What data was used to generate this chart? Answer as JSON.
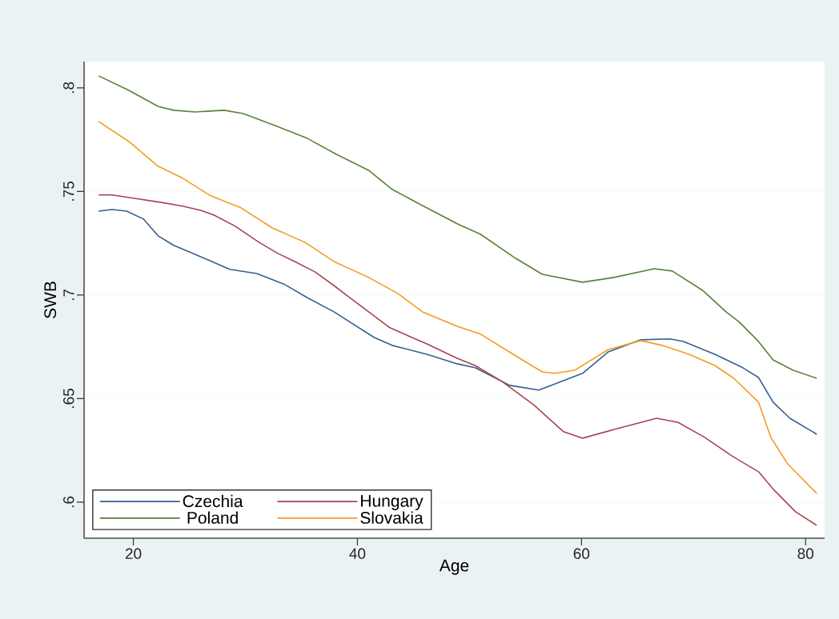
{
  "chart_data": {
    "type": "line",
    "xlabel": "Age",
    "ylabel": "SWB",
    "xlim": [
      15.6,
      81.7
    ],
    "ylim": [
      0.5826,
      0.8127
    ],
    "xticks": [
      20,
      40,
      60,
      80
    ],
    "yticks": [
      {
        "value": 0.6,
        "label": ".6"
      },
      {
        "value": 0.65,
        "label": ".65"
      },
      {
        "value": 0.7,
        "label": ".7"
      },
      {
        "value": 0.75,
        "label": ".75"
      },
      {
        "value": 0.8,
        "label": ".8"
      }
    ],
    "grid": "y",
    "legend": "bottom left",
    "marker": "none",
    "line_style": "solid",
    "series": [
      {
        "name": "Czechia",
        "color": "#33618f",
        "x": [
          16.9,
          18.1,
          19.4,
          20.9,
          22.2,
          23.6,
          25.8,
          28.6,
          31,
          33.4,
          35.5,
          37.9,
          41.5,
          43.1,
          46.2,
          48.9,
          50.5,
          53.6,
          56.2,
          60.1,
          62.4,
          65.3,
          67.9,
          69.1,
          71.9,
          74.4,
          75.8,
          77.1,
          78.6,
          81
        ],
        "values": [
          0.7405,
          0.7413,
          0.7405,
          0.7367,
          0.7286,
          0.724,
          0.719,
          0.7124,
          0.7104,
          0.7054,
          0.6988,
          0.6919,
          0.6795,
          0.6757,
          0.6714,
          0.6668,
          0.6649,
          0.6564,
          0.6541,
          0.6622,
          0.6726,
          0.6784,
          0.6788,
          0.6776,
          0.6714,
          0.6649,
          0.6602,
          0.6483,
          0.6405,
          0.6328
        ]
      },
      {
        "name": "Hungary",
        "color": "#a8434f",
        "x": [
          16.9,
          18.1,
          20.1,
          22.4,
          24.4,
          26,
          27.2,
          29.1,
          31.2,
          32.9,
          34.4,
          36.2,
          37.9,
          39.1,
          41,
          42.9,
          46.2,
          48.9,
          50.5,
          52.9,
          55.8,
          58.4,
          60.1,
          62.9,
          66.7,
          68.6,
          71,
          73.4,
          75.8,
          77.2,
          79.1,
          81
        ],
        "values": [
          0.7483,
          0.7483,
          0.7467,
          0.7448,
          0.7429,
          0.7409,
          0.7386,
          0.7332,
          0.7255,
          0.7201,
          0.7162,
          0.7112,
          0.7046,
          0.6996,
          0.6919,
          0.6842,
          0.6764,
          0.6695,
          0.666,
          0.6583,
          0.6467,
          0.634,
          0.6309,
          0.6351,
          0.6405,
          0.6386,
          0.6313,
          0.6224,
          0.6147,
          0.6058,
          0.5954,
          0.5888
        ]
      },
      {
        "name": "Poland",
        "color": "#5a8236",
        "x": [
          16.9,
          19.6,
          22.2,
          23.6,
          25.5,
          28.1,
          29.8,
          32.6,
          35.5,
          38.1,
          41,
          43.1,
          45.8,
          48.9,
          51,
          54.1,
          56.5,
          60.1,
          62.9,
          66.5,
          68.1,
          70.8,
          72.9,
          74.1,
          75.8,
          77.1,
          78.9,
          81
        ],
        "values": [
          0.8058,
          0.7988,
          0.7911,
          0.7892,
          0.7884,
          0.7892,
          0.7876,
          0.7819,
          0.7757,
          0.768,
          0.7602,
          0.751,
          0.7432,
          0.7344,
          0.7293,
          0.7178,
          0.71,
          0.7062,
          0.7085,
          0.7127,
          0.7116,
          0.7023,
          0.6919,
          0.6869,
          0.6776,
          0.6687,
          0.6637,
          0.6598
        ]
      },
      {
        "name": "Slovakia",
        "color": "#f39c1f",
        "x": [
          16.9,
          19.6,
          22.2,
          24.4,
          26.9,
          29.6,
          32.4,
          35.3,
          37.9,
          41,
          43.6,
          45.8,
          48.9,
          51,
          54.1,
          56.5,
          57.6,
          59.4,
          62.4,
          65.3,
          67.2,
          69.6,
          71.9,
          73.6,
          75.8,
          76.9,
          78.4,
          81
        ],
        "values": [
          0.7838,
          0.7741,
          0.7622,
          0.7564,
          0.7479,
          0.7421,
          0.7324,
          0.7255,
          0.7162,
          0.7085,
          0.7008,
          0.6919,
          0.6849,
          0.6811,
          0.6707,
          0.6629,
          0.6622,
          0.6637,
          0.6737,
          0.678,
          0.6757,
          0.6714,
          0.666,
          0.6598,
          0.6483,
          0.6313,
          0.6185,
          0.6042
        ]
      }
    ]
  }
}
